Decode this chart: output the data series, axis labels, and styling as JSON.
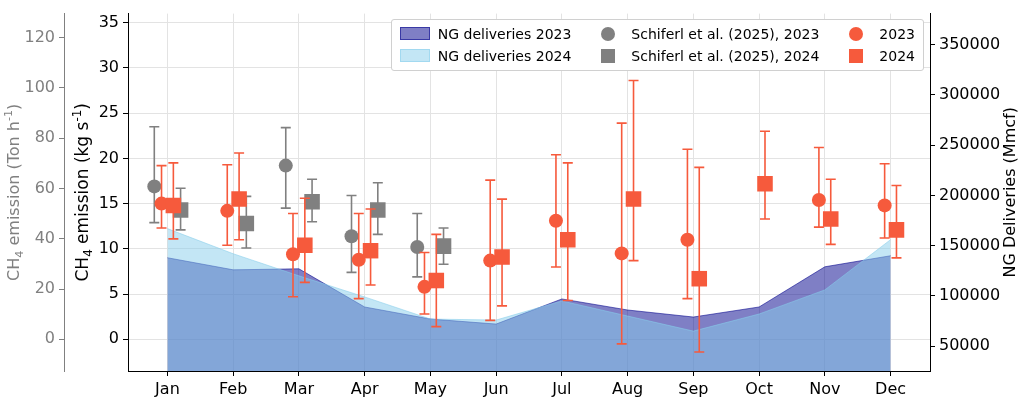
{
  "chart_data": {
    "type": "scatter",
    "categories": [
      "Jan",
      "Feb",
      "Mar",
      "Apr",
      "May",
      "Jun",
      "Jul",
      "Aug",
      "Sep",
      "Oct",
      "Nov",
      "Dec"
    ],
    "ylabel": "CH$_{4}$ emission (kg s$^{-1}$)",
    "y2label": "NG Deliveries (Mmcf)",
    "y3label": "CH$_{4}$ emission (Ton h$^{-1}$)",
    "ylim": [
      -3.5,
      36
    ],
    "yticks": [
      0,
      5,
      10,
      15,
      20,
      25,
      30,
      35
    ],
    "y2lim": [
      25300,
      381000
    ],
    "y2ticks": [
      50000,
      100000,
      150000,
      200000,
      250000,
      300000,
      350000
    ],
    "y3lim": [
      -12.6,
      129.6
    ],
    "y3ticks": [
      0,
      20,
      40,
      60,
      80,
      100,
      120
    ],
    "grid": true,
    "legend": "top right",
    "series": [
      {
        "name": "NG deliveries 2023",
        "type": "area",
        "axis": "y2",
        "color": "#00008b",
        "values": [
          138000,
          126000,
          127000,
          89000,
          77000,
          72000,
          97000,
          86000,
          79000,
          89000,
          129000,
          140000
        ]
      },
      {
        "name": "NG deliveries 2024",
        "type": "area",
        "axis": "y2",
        "color": "#87ceeb",
        "values": [
          167000,
          142000,
          120000,
          99000,
          77000,
          76000,
          95000,
          80000,
          65000,
          82000,
          106000,
          156000
        ]
      },
      {
        "name": "Schiferl et al. (2025), 2023",
        "marker": "circle",
        "color": "#808080",
        "values": [
          16.9,
          null,
          19.2,
          11.4,
          10.2,
          null,
          null,
          null,
          null,
          null,
          null,
          null
        ],
        "errors": [
          [
            12.9,
            23.5
          ],
          null,
          [
            14.5,
            23.4
          ],
          [
            7.4,
            15.9
          ],
          [
            6.9,
            13.9
          ],
          null,
          null,
          null,
          null,
          null,
          null,
          null
        ]
      },
      {
        "name": "Schiferl et al. (2025), 2024",
        "marker": "square",
        "color": "#808080",
        "values": [
          14.3,
          12.8,
          15.2,
          14.3,
          10.3,
          null,
          null,
          null,
          null,
          null,
          null,
          null
        ],
        "errors": [
          [
            12.1,
            16.7
          ],
          [
            10.1,
            15.8
          ],
          [
            13.0,
            17.7
          ],
          [
            11.6,
            17.3
          ],
          [
            8.3,
            12.3
          ],
          null,
          null,
          null,
          null,
          null,
          null,
          null
        ]
      },
      {
        "name": "2023",
        "marker": "circle",
        "color": "#f65a3c",
        "values": [
          15.0,
          14.2,
          9.4,
          8.8,
          5.8,
          8.7,
          13.1,
          9.5,
          11.0,
          null,
          15.4,
          14.8
        ],
        "errors": [
          [
            12.3,
            19.2
          ],
          [
            10.4,
            19.3
          ],
          [
            4.7,
            13.9
          ],
          [
            4.5,
            13.9
          ],
          [
            2.8,
            9.6
          ],
          [
            2.1,
            17.6
          ],
          [
            8.0,
            20.4
          ],
          [
            -0.5,
            23.9
          ],
          [
            4.5,
            21.0
          ],
          null,
          [
            12.4,
            21.2
          ],
          [
            11.2,
            19.4
          ]
        ]
      },
      {
        "name": "2024",
        "marker": "square",
        "color": "#f65a3c",
        "values": [
          14.8,
          15.5,
          10.4,
          9.8,
          6.5,
          9.1,
          11.0,
          15.5,
          6.7,
          17.2,
          13.3,
          12.1
        ],
        "errors": [
          [
            11.1,
            19.5
          ],
          [
            11.0,
            20.6
          ],
          [
            6.3,
            15.6
          ],
          [
            6.0,
            14.4
          ],
          [
            1.4,
            11.6
          ],
          [
            3.7,
            15.5
          ],
          [
            4.3,
            19.5
          ],
          [
            8.7,
            28.6
          ],
          [
            -1.4,
            19.0
          ],
          [
            13.3,
            23.0
          ],
          [
            10.5,
            17.7
          ],
          [
            9.0,
            17.0
          ]
        ]
      }
    ]
  }
}
